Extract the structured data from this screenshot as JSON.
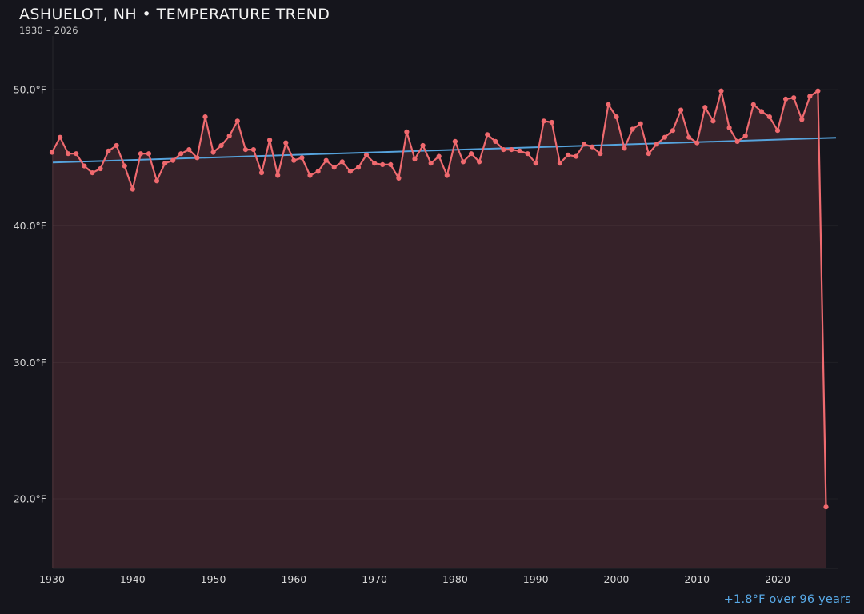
{
  "header": {
    "title": "ASHUELOT, NH • TEMPERATURE TREND",
    "subtitle": "1930 – 2026"
  },
  "annotation": {
    "text": "+1.8°F over 96 years"
  },
  "chart_data": {
    "type": "area",
    "title": "ASHUELOT, NH • TEMPERATURE TREND",
    "subtitle": "1930 – 2026",
    "x_start_year": 1930,
    "x_end_year": 2026,
    "xlabel": "",
    "ylabel": "",
    "ylim": [
      14.9,
      53.0
    ],
    "grid": true,
    "legend": false,
    "x_tick_labels": [
      "1930",
      "1940",
      "1950",
      "1960",
      "1970",
      "1980",
      "1990",
      "2000",
      "2010",
      "2020"
    ],
    "x_tick_years": [
      1930,
      1940,
      1950,
      1960,
      1970,
      1980,
      1990,
      2000,
      2010,
      2020
    ],
    "y_tick_labels": [
      "50.0°F",
      "40.0°F",
      "30.0°F",
      "20.0°F"
    ],
    "y_tick_values": [
      50.0,
      40.0,
      30.0,
      20.0
    ],
    "series": [
      {
        "name": "annual-mean-temperature",
        "values": [
          45.4,
          46.5,
          45.3,
          45.3,
          44.4,
          43.9,
          44.2,
          45.5,
          45.9,
          44.4,
          42.7,
          45.3,
          45.3,
          43.3,
          44.6,
          44.8,
          45.3,
          45.6,
          45.0,
          48.0,
          45.4,
          45.9,
          46.6,
          47.7,
          45.6,
          45.6,
          43.9,
          46.3,
          43.7,
          46.1,
          44.8,
          45.0,
          43.7,
          44.0,
          44.8,
          44.3,
          44.7,
          44.0,
          44.3,
          45.2,
          44.6,
          44.5,
          44.5,
          43.5,
          46.9,
          44.9,
          45.9,
          44.6,
          45.1,
          43.7,
          46.2,
          44.7,
          45.3,
          44.7,
          46.7,
          46.2,
          45.6,
          45.6,
          45.5,
          45.3,
          44.6,
          47.7,
          47.6,
          44.6,
          45.2,
          45.1,
          46.0,
          45.8,
          45.3,
          48.9,
          48.0,
          45.7,
          47.1,
          47.5,
          45.3,
          46.0,
          46.5,
          47.0,
          48.5,
          46.5,
          46.1,
          48.7,
          47.7,
          49.9,
          47.2,
          46.2,
          46.6,
          48.9,
          48.4,
          48.0,
          47.0,
          49.3,
          49.4,
          47.8,
          49.5,
          49.9,
          19.4
        ]
      }
    ],
    "trend": {
      "start_value": 44.65,
      "end_value": 46.47,
      "delta_label": "+1.8°F over 96 years",
      "delta_f": 1.8,
      "span_years": 96
    },
    "colors": {
      "background": "#15151c",
      "line": "#ef6a6f",
      "point": "#f0696e",
      "fill": "rgba(239,107,112,0.155)",
      "trend_line": "#56a3dc",
      "annotation_text": "#58a9e6",
      "tick_text": "#d6d6d6",
      "title_text": "#f2f2f2",
      "grid_line": "rgba(255,255,255,0.045)",
      "axis_line": "rgba(255,255,255,0.08)"
    }
  }
}
